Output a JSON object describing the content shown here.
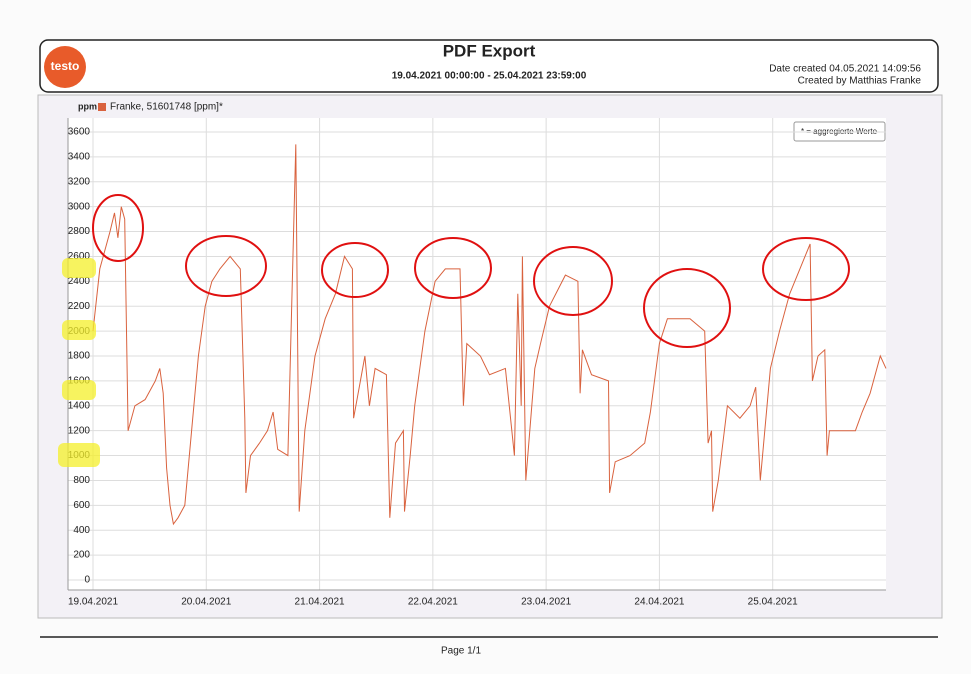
{
  "header": {
    "logo": "testo",
    "title": "PDF Export",
    "range": "19.04.2021 00:00:00 - 25.04.2021 23:59:00",
    "date_created": "Date created 04.05.2021 14:09:56",
    "created_by": "Created by Matthias Franke"
  },
  "footer": {
    "page": "Page 1/1"
  },
  "chart_data": {
    "type": "line",
    "y_label": "ppm",
    "note": "* = aggregierte Werte",
    "grid": true,
    "xlim": [
      0,
      7
    ],
    "xticks": [
      {
        "value": 0,
        "label": "19.04.2021"
      },
      {
        "value": 1,
        "label": "20.04.2021"
      },
      {
        "value": 2,
        "label": "21.04.2021"
      },
      {
        "value": 3,
        "label": "22.04.2021"
      },
      {
        "value": 4,
        "label": "23.04.2021"
      },
      {
        "value": 5,
        "label": "24.04.2021"
      },
      {
        "value": 6,
        "label": "25.04.2021"
      }
    ],
    "ylim": [
      -100,
      3700
    ],
    "yticks": [
      0,
      200,
      400,
      600,
      800,
      1000,
      1200,
      1400,
      1600,
      1800,
      2000,
      2200,
      2400,
      2600,
      2800,
      3000,
      3200,
      3400,
      3600
    ],
    "x": [
      0,
      0.06,
      0.15,
      0.19,
      0.22,
      0.25,
      0.28,
      0.31,
      0.37,
      0.46,
      0.55,
      0.59,
      0.62,
      0.65,
      0.68,
      0.71,
      0.75,
      0.81,
      0.87,
      0.93,
      0.99,
      1.05,
      1.12,
      1.21,
      1.3,
      1.34,
      1.35,
      1.39,
      1.47,
      1.54,
      1.59,
      1.63,
      1.72,
      1.79,
      1.82,
      1.87,
      1.96,
      2.05,
      2.14,
      2.22,
      2.29,
      2.3,
      2.36,
      2.4,
      2.44,
      2.49,
      2.59,
      2.62,
      2.67,
      2.74,
      2.75,
      2.8,
      2.84,
      2.93,
      3.02,
      3.11,
      3.24,
      3.27,
      3.3,
      3.42,
      3.5,
      3.64,
      3.72,
      3.75,
      3.78,
      3.79,
      3.82,
      3.9,
      3.95,
      4.03,
      4.17,
      4.28,
      4.3,
      4.32,
      4.4,
      4.55,
      4.56,
      4.61,
      4.74,
      4.87,
      4.92,
      5.0,
      5.07,
      5.27,
      5.4,
      5.43,
      5.46,
      5.47,
      5.52,
      5.6,
      5.71,
      5.8,
      5.85,
      5.89,
      5.98,
      6.06,
      6.15,
      6.24,
      6.33,
      6.35,
      6.4,
      6.46,
      6.48,
      6.5,
      6.73,
      6.79,
      6.86,
      6.95,
      7.0
    ],
    "series": [
      {
        "name": "Franke, 51601748 [ppm]*",
        "color": "#d9623e",
        "values": [
          2000,
          2500,
          2800,
          2950,
          2750,
          3000,
          2900,
          1200,
          1400,
          1450,
          1600,
          1700,
          1500,
          900,
          600,
          450,
          500,
          600,
          1200,
          1800,
          2200,
          2400,
          2500,
          2600,
          2500,
          1300,
          700,
          1000,
          1100,
          1200,
          1350,
          1050,
          1000,
          3500,
          550,
          1200,
          1800,
          2100,
          2300,
          2600,
          2500,
          1300,
          1600,
          1800,
          1400,
          1700,
          1650,
          500,
          1100,
          1200,
          550,
          1000,
          1400,
          2000,
          2400,
          2500,
          2500,
          1400,
          1900,
          1800,
          1650,
          1700,
          1000,
          2300,
          1400,
          2600,
          800,
          1700,
          1900,
          2200,
          2450,
          2400,
          1500,
          1850,
          1650,
          1600,
          700,
          950,
          1000,
          1100,
          1350,
          1900,
          2100,
          2100,
          2000,
          1100,
          1200,
          550,
          800,
          1400,
          1300,
          1400,
          1550,
          800,
          1700,
          2000,
          2300,
          2500,
          2700,
          1600,
          1800,
          1850,
          1000,
          1200,
          1200,
          1350,
          1500,
          1800,
          1700
        ]
      }
    ]
  }
}
